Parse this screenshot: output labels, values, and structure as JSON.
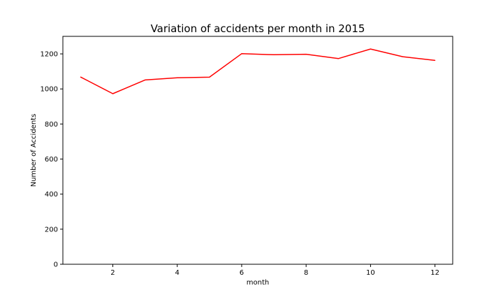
{
  "chart_data": {
    "type": "line",
    "title": "Variation of accidents per month in 2015",
    "xlabel": "month",
    "ylabel": "Number of Accidents",
    "xlim": [
      0.45,
      12.55
    ],
    "ylim": [
      0,
      1300
    ],
    "xticks": [
      2,
      4,
      6,
      8,
      10,
      12
    ],
    "yticks": [
      0,
      200,
      400,
      600,
      800,
      1000,
      1200
    ],
    "grid": false,
    "series": [
      {
        "color": "#ff0000",
        "x": [
          1,
          2,
          3,
          4,
          5,
          6,
          7,
          8,
          9,
          10,
          11,
          12
        ],
        "y": [
          1068,
          973,
          1051,
          1064,
          1067,
          1201,
          1195,
          1198,
          1173,
          1228,
          1184,
          1163
        ]
      }
    ]
  }
}
